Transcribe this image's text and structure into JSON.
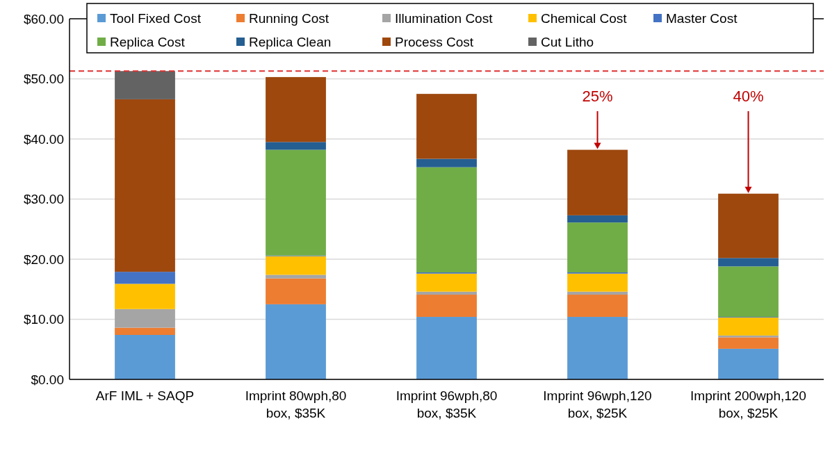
{
  "chart_data": {
    "type": "bar",
    "stacked": true,
    "categories": [
      "ArF IML + SAQP",
      "Imprint 80wph,80 box, $35K",
      "Imprint 96wph,80 box, $35K",
      "Imprint 96wph,120 box, $25K",
      "Imprint 200wph,120 box, $25K"
    ],
    "series": [
      {
        "name": "Tool Fixed Cost",
        "color": "#5b9bd5",
        "values": [
          7.4,
          12.5,
          10.4,
          10.4,
          5.1
        ]
      },
      {
        "name": "Running Cost",
        "color": "#ed7d31",
        "values": [
          1.2,
          4.3,
          3.7,
          3.7,
          1.9
        ]
      },
      {
        "name": "Illumination Cost",
        "color": "#a5a5a5",
        "values": [
          3.1,
          0.6,
          0.5,
          0.5,
          0.3
        ]
      },
      {
        "name": "Chemical Cost",
        "color": "#ffc000",
        "values": [
          4.2,
          3.1,
          3.0,
          3.0,
          3.0
        ]
      },
      {
        "name": "Master Cost",
        "color": "#4472c4",
        "values": [
          2.0,
          0.1,
          0.2,
          0.2,
          0.1
        ]
      },
      {
        "name": "Replica Cost",
        "color": "#70ad47",
        "values": [
          0,
          17.6,
          17.5,
          8.3,
          8.4
        ]
      },
      {
        "name": "Replica Clean",
        "color": "#255e91",
        "values": [
          0,
          1.3,
          1.4,
          1.2,
          1.4
        ]
      },
      {
        "name": "Process Cost",
        "color": "#9e480e",
        "values": [
          28.7,
          10.8,
          10.8,
          10.9,
          10.7
        ]
      },
      {
        "name": "Cut Litho",
        "color": "#636363",
        "values": [
          4.7,
          0,
          0,
          0,
          0
        ]
      }
    ],
    "ylim": [
      0,
      60
    ],
    "yticks": [
      {
        "value": 0,
        "label": "$0.00"
      },
      {
        "value": 10,
        "label": "$10.00"
      },
      {
        "value": 20,
        "label": "$20.00"
      },
      {
        "value": 30,
        "label": "$30.00"
      },
      {
        "value": 40,
        "label": "$40.00"
      },
      {
        "value": 50,
        "label": "$50.00"
      },
      {
        "value": 60,
        "label": "$60.00"
      }
    ],
    "grid": "y",
    "legend": "top",
    "ref_lines": [
      {
        "axis": "y",
        "value": 51.3,
        "color": "#e03030",
        "line_style": "dashed"
      }
    ],
    "annotations": [
      {
        "text": "25%",
        "x": "Imprint 96wph,120 box, $25K",
        "y": 38.2
      },
      {
        "text": "40%",
        "x": "Imprint 200wph,120 box, $25K",
        "y": 30.9
      }
    ]
  }
}
